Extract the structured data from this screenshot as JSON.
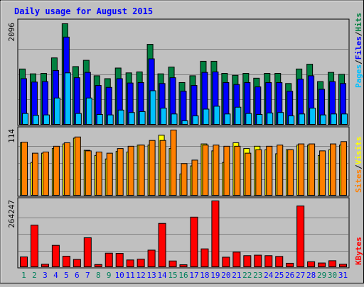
{
  "colors": {
    "background": "#c0c0c0",
    "panel": "#c0c0c0",
    "title": "#0000ff",
    "hits": "#008040",
    "files": "#0000ff",
    "pages": "#00c0ff",
    "visits": "#ffff00",
    "sites": "#ff8000",
    "kbytes": "#ff0000",
    "weekend_label": "#00805c",
    "weekday_label": "#0000ff",
    "gridline": "#808080"
  },
  "chart_data": {
    "type": "bar",
    "title": "Daily usage for August 2015",
    "categories": [
      "1",
      "2",
      "3",
      "4",
      "5",
      "6",
      "7",
      "8",
      "9",
      "10",
      "11",
      "12",
      "13",
      "14",
      "15",
      "16",
      "17",
      "18",
      "19",
      "20",
      "21",
      "22",
      "23",
      "24",
      "25",
      "26",
      "27",
      "28",
      "29",
      "30",
      "31"
    ],
    "weekend_days": [
      "1",
      "2",
      "8",
      "9",
      "15",
      "16",
      "22",
      "23",
      "29",
      "30"
    ],
    "panels": [
      {
        "id": "hits_files_pages",
        "scale_max_label": "2096",
        "ylim": [
          0,
          2096
        ],
        "legend": {
          "pages": "Pages",
          "sep1": "/",
          "files": "Files",
          "sep2": "/",
          "hits": "Hits"
        },
        "series": [
          {
            "name": "Hits",
            "values": [
              1160,
              1060,
              1070,
              1390,
              2096,
              1210,
              1340,
              1020,
              960,
              1180,
              1080,
              1100,
              1670,
              1060,
              1200,
              880,
              1020,
              1320,
              1320,
              1070,
              1030,
              1070,
              970,
              1070,
              1070,
              860,
              1160,
              1260,
              900,
              1090,
              1050
            ]
          },
          {
            "name": "Files",
            "values": [
              960,
              890,
              900,
              1130,
              1820,
              980,
              1090,
              820,
              780,
              960,
              870,
              880,
              1370,
              860,
              980,
              700,
              820,
              1090,
              1100,
              880,
              840,
              880,
              790,
              880,
              880,
              700,
              950,
              1020,
              740,
              900,
              860
            ]
          },
          {
            "name": "Pages",
            "values": [
              240,
              200,
              210,
              560,
              1080,
              240,
              560,
              220,
              210,
              310,
              260,
              280,
              710,
              350,
              230,
              90,
              190,
              330,
              390,
              230,
              370,
              240,
              220,
              250,
              260,
              190,
              230,
              350,
              210,
              230,
              230
            ]
          }
        ]
      },
      {
        "id": "sites_visits",
        "scale_max_label": "114",
        "ylim": [
          0,
          114
        ],
        "legend": {
          "sites": "Sites",
          "sep": "/",
          "visits": "Visits"
        },
        "series": [
          {
            "name": "Visits",
            "values": [
              92,
              58,
              74,
              82,
              90,
              100,
              79,
              70,
              64,
              77,
              76,
              88,
              88,
              105,
              82,
              38,
              52,
              90,
              78,
              58,
              92,
              82,
              86,
              80,
              73,
              80,
              88,
              88,
              70,
              80,
              88
            ]
          },
          {
            "name": "Sites",
            "values": [
              93,
              74,
              76,
              86,
              92,
              102,
              78,
              76,
              74,
              82,
              86,
              88,
              96,
              96,
              114,
              56,
              62,
              88,
              88,
              86,
              86,
              74,
              80,
              86,
              88,
              80,
              90,
              90,
              78,
              90,
              94
            ]
          }
        ]
      },
      {
        "id": "kbytes",
        "scale_max_label": "264247",
        "ylim": [
          0,
          264247
        ],
        "legend": {
          "kbytes": "KBytes"
        },
        "series": [
          {
            "name": "KBytes",
            "values": [
              42000,
              168000,
              13000,
              88000,
              45000,
              32000,
              118000,
              12000,
              57000,
              56000,
              30000,
              33000,
              69000,
              175000,
              26000,
              11000,
              200000,
              74000,
              264247,
              41000,
              61000,
              47000,
              49000,
              47000,
              44000,
              17000,
              244000,
              23000,
              18000,
              27000,
              13000
            ]
          }
        ]
      }
    ]
  }
}
